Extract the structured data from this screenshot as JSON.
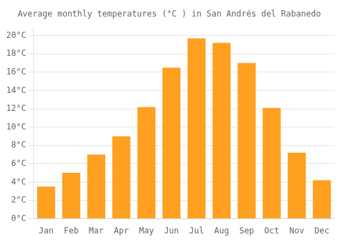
{
  "chart_data": {
    "type": "bar",
    "title": "Average monthly temperatures (°C ) in San Andrés del Rabanedo",
    "categories": [
      "Jan",
      "Feb",
      "Mar",
      "Apr",
      "May",
      "Jun",
      "Jul",
      "Aug",
      "Sep",
      "Oct",
      "Nov",
      "Dec"
    ],
    "values": [
      3.5,
      5.0,
      7.0,
      9.0,
      12.2,
      16.5,
      19.7,
      19.2,
      17.0,
      12.1,
      7.2,
      4.2
    ],
    "color": "#FFA020",
    "ylim": [
      0,
      21
    ],
    "yticks": [
      {
        "value": 0,
        "label": "0°C"
      },
      {
        "value": 2,
        "label": "2°C"
      },
      {
        "value": 4,
        "label": "4°C"
      },
      {
        "value": 6,
        "label": "6°C"
      },
      {
        "value": 8,
        "label": "8°C"
      },
      {
        "value": 10,
        "label": "10°C"
      },
      {
        "value": 12,
        "label": "12°C"
      },
      {
        "value": 14,
        "label": "14°C"
      },
      {
        "value": 16,
        "label": "16°C"
      },
      {
        "value": 18,
        "label": "18°C"
      },
      {
        "value": 20,
        "label": "20°C"
      }
    ],
    "grid": true
  }
}
